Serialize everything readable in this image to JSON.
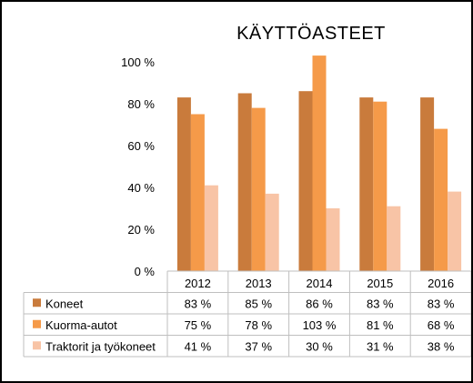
{
  "chart_data": {
    "type": "bar",
    "title": "KÄYTTÖASTEET",
    "categories": [
      "2012",
      "2013",
      "2014",
      "2015",
      "2016"
    ],
    "series": [
      {
        "name": "Koneet",
        "values": [
          83,
          85,
          86,
          83,
          83
        ],
        "labels": [
          "83 %",
          "85 %",
          "86 %",
          "83 %",
          "83 %"
        ],
        "color": "#C97B3C"
      },
      {
        "name": "Kuorma-autot",
        "values": [
          75,
          78,
          103,
          81,
          68
        ],
        "labels": [
          "75 %",
          "78 %",
          "103 %",
          "81 %",
          "68 %"
        ],
        "color": "#F59A49"
      },
      {
        "name": "Traktorit ja työkoneet",
        "values": [
          41,
          37,
          30,
          31,
          38
        ],
        "labels": [
          "41 %",
          "37 %",
          "30 %",
          "31 %",
          "38 %"
        ],
        "color": "#F8C4A6"
      }
    ],
    "ylim": [
      0,
      100
    ],
    "yticks": [
      0,
      20,
      40,
      60,
      80,
      100
    ],
    "ytick_labels": [
      "0 %",
      "20 %",
      "40 %",
      "60 %",
      "80 %",
      "100 %"
    ],
    "grid": false,
    "legend": "data-table"
  }
}
